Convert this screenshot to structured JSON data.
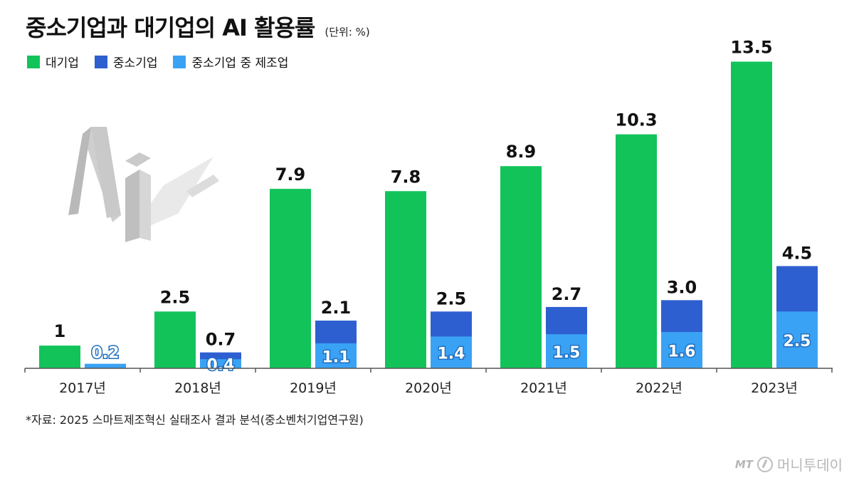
{
  "header": {
    "title": "중소기업과 대기업의 AI 활용률",
    "unit": "(단위: %)"
  },
  "legend": [
    {
      "label": "대기업",
      "color": "#12c35a"
    },
    {
      "label": "중소기업",
      "color": "#2e5fd0"
    },
    {
      "label": "중소기업 중 제조업",
      "color": "#3aa2f5"
    }
  ],
  "source": "*자료: 2025 스마트제조혁신 실태조사 결과 분석(중소벤처기업연구원)",
  "brand": {
    "mark": "MT",
    "name": "머니투데이"
  },
  "chart_data": {
    "type": "bar",
    "title": "중소기업과 대기업의 AI 활용률",
    "ylim": [
      0,
      14
    ],
    "grid": false,
    "legend_position": "top-left",
    "categories": [
      "2017년",
      "2018년",
      "2019년",
      "2020년",
      "2021년",
      "2022년",
      "2023년"
    ],
    "series": [
      {
        "name": "대기업",
        "color": "#12c35a",
        "values": [
          1,
          2.5,
          7.9,
          7.8,
          8.9,
          10.3,
          13.5
        ],
        "labels": [
          "1",
          "2.5",
          "7.9",
          "7.8",
          "8.9",
          "10.3",
          "13.5"
        ]
      },
      {
        "name": "중소기업",
        "color": "#2e5fd0",
        "values": [
          null,
          0.7,
          2.1,
          2.5,
          2.7,
          3.0,
          4.5
        ],
        "labels": [
          "",
          "0.7",
          "2.1",
          "2.5",
          "2.7",
          "3.0",
          "4.5"
        ]
      },
      {
        "name": "중소기업 중 제조업",
        "color": "#3aa2f5",
        "values": [
          0.2,
          0.4,
          1.1,
          1.4,
          1.5,
          1.6,
          2.5
        ],
        "labels": [
          "0.2",
          "0.4",
          "1.1",
          "1.4",
          "1.5",
          "1.6",
          "2.5"
        ]
      }
    ]
  }
}
